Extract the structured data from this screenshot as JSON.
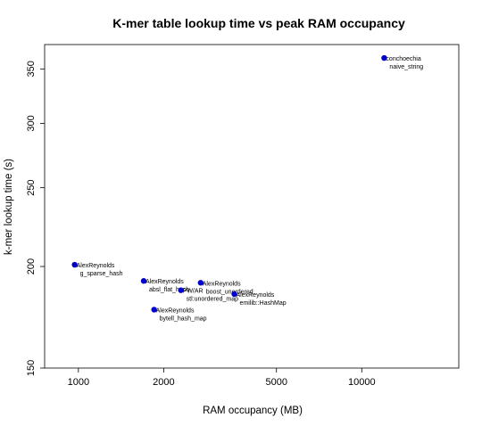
{
  "chart_data": {
    "type": "scatter",
    "title": "K-mer table lookup time vs peak RAM occupancy",
    "xlabel": "RAM occupancy (MB)",
    "ylabel": "k-mer lookup time (s)",
    "x_scale": "log",
    "y_scale": "log",
    "xlim": [
      760,
      22000
    ],
    "ylim": [
      150,
      375
    ],
    "x_ticks": [
      1000,
      2000,
      5000,
      10000
    ],
    "x_tick_labels": [
      "1000",
      "2000",
      "5000",
      "10000"
    ],
    "y_ticks": [
      150,
      200,
      250,
      300,
      350
    ],
    "y_tick_labels": [
      "150",
      "200",
      "250",
      "300",
      "350"
    ],
    "grid": false,
    "point_color": "#0000cc",
    "points": [
      {
        "x": 12000,
        "y": 361,
        "label": [
          "conchoechia",
          "naive_string"
        ]
      },
      {
        "x": 970,
        "y": 201,
        "label": [
          "AlexReynolds",
          "g_sparse_hash"
        ]
      },
      {
        "x": 1700,
        "y": 192,
        "label": [
          "AlexReynolds",
          "absl_flat_hash"
        ]
      },
      {
        "x": 2700,
        "y": 191,
        "label": [
          "AlexReynolds",
          "boost_unordered"
        ]
      },
      {
        "x": 2300,
        "y": 187,
        "label": [
          "PW/AR",
          "stl:unordered_map"
        ]
      },
      {
        "x": 3550,
        "y": 185,
        "label": [
          "AlexReynolds",
          "emilib::HashMap"
        ]
      },
      {
        "x": 1850,
        "y": 177,
        "label": [
          "AlexReynolds",
          "bytell_hash_map"
        ]
      }
    ]
  }
}
